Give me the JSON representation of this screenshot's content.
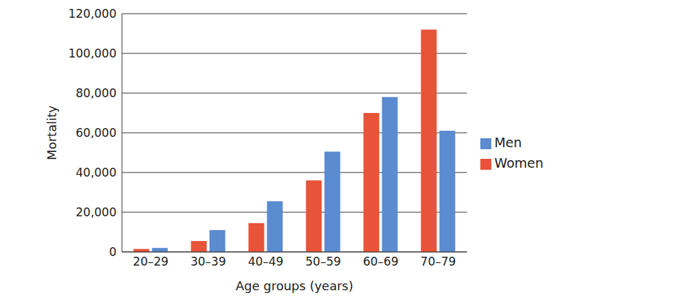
{
  "chart_data": {
    "type": "bar",
    "x_label": "Age groups (years)",
    "y_label": "Mortality",
    "categories": [
      "20–29",
      "30–39",
      "40–49",
      "50–59",
      "60–69",
      "70–79"
    ],
    "series": [
      {
        "name": "Women",
        "color": "#e8533a",
        "values": [
          1500,
          5500,
          14500,
          36000,
          70000,
          112000
        ]
      },
      {
        "name": "Men",
        "color": "#5b8bd0",
        "values": [
          2000,
          11000,
          25500,
          50500,
          78000,
          61000
        ]
      }
    ],
    "ylim": [
      0,
      120000
    ],
    "yticks": [
      0,
      {
        "value": 20000,
        "label": "20,000"
      },
      {
        "value": 40000,
        "label": "40,000"
      },
      {
        "value": 60000,
        "label": "60,000"
      },
      {
        "value": 80000,
        "label": "80,000"
      },
      {
        "value": 100000,
        "label": "100,000"
      },
      {
        "value": 120000,
        "label": "120,000"
      }
    ],
    "grid": true,
    "legend": "right"
  }
}
